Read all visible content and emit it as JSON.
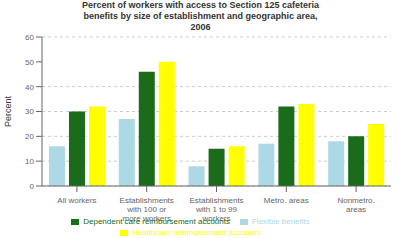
{
  "chart_data": {
    "type": "bar",
    "title": "Percent of workers with access to Section 125 cafeteria\nbenefits by size of establishment and geographic area,\n2006",
    "ylabel": "Percent",
    "categories": [
      "All workers",
      "Establishments\nwith 100 or\nmore workers",
      "Establishments\nwith 1 to 99\nworkers",
      "Metro. areas",
      "Nonmetro.\nareas"
    ],
    "series": [
      {
        "name": "Flexible benefits",
        "color": "#add8e6",
        "values": [
          16,
          27,
          8,
          17,
          18
        ]
      },
      {
        "name": "Dependent care reimbursement accounts",
        "color": "#1a6b1a",
        "values": [
          30,
          46,
          15,
          32,
          20
        ]
      },
      {
        "name": "Healthcare reimbursement accounts",
        "color": "#ffff00",
        "values": [
          32,
          50,
          16,
          33,
          25
        ]
      }
    ],
    "ylim": [
      0,
      60
    ],
    "yticks": [
      0,
      10,
      20,
      30,
      40,
      50,
      60
    ],
    "grid": true,
    "legend": "bottom"
  }
}
